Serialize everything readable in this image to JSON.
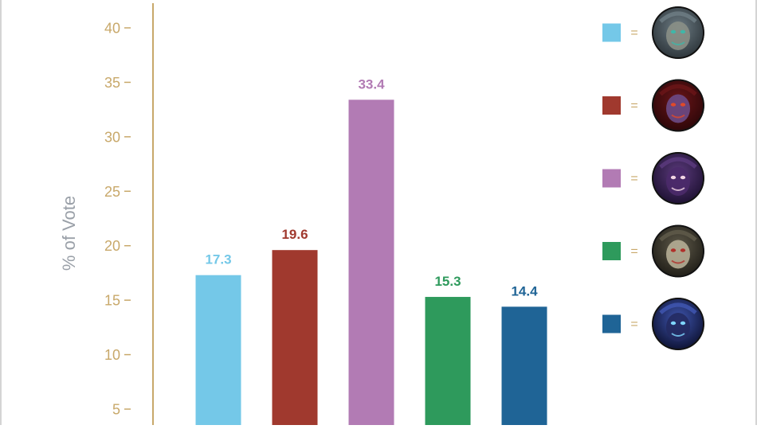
{
  "chart_data": {
    "type": "bar",
    "ylabel": "% of Vote",
    "ylim": [
      0,
      42
    ],
    "yticks": [
      5,
      10,
      15,
      20,
      25,
      30,
      35,
      40
    ],
    "grid": false,
    "legend_position": "right",
    "series": [
      {
        "color": "#74c8e8",
        "value": 17.3,
        "icon": "armored-champion-portrait"
      },
      {
        "color": "#a0392e",
        "value": 19.6,
        "icon": "demon-champion-portrait"
      },
      {
        "color": "#b27bb4",
        "value": 33.4,
        "icon": "void-creature-portrait"
      },
      {
        "color": "#2e9a5c",
        "value": 15.3,
        "icon": "skull-champion-portrait"
      },
      {
        "color": "#1f6496",
        "value": 14.4,
        "icon": "shadow-assassin-portrait"
      }
    ]
  },
  "legend": {
    "separator": "="
  }
}
